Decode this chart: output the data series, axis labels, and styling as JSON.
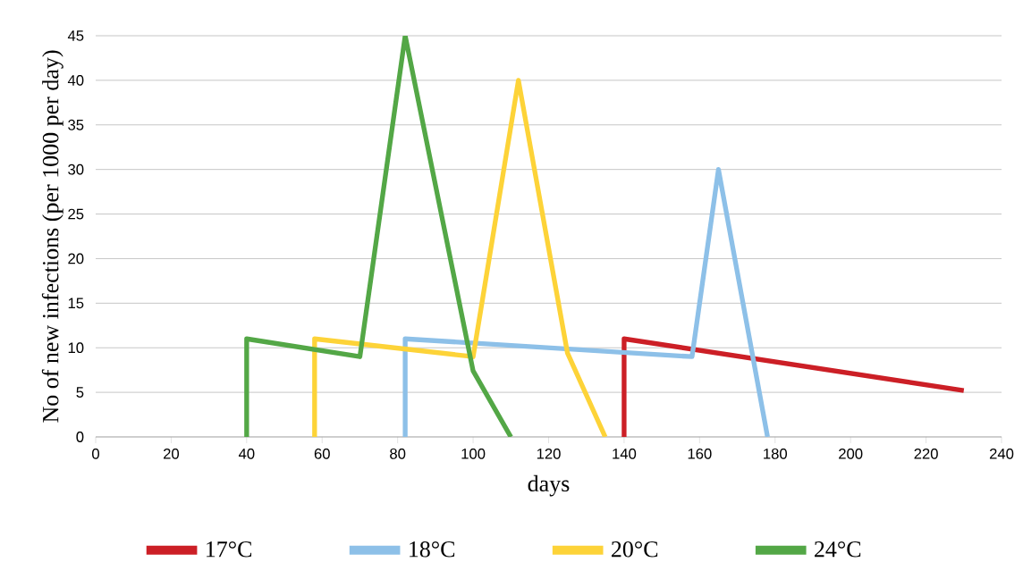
{
  "chart_data": {
    "type": "line",
    "xlabel": "days",
    "ylabel": "No of new infections (per 1000 per day)",
    "xlim": [
      0,
      240
    ],
    "xticks": [
      0,
      20,
      40,
      60,
      80,
      100,
      120,
      140,
      160,
      180,
      200,
      220,
      240
    ],
    "ylim": [
      0,
      45
    ],
    "yticks": [
      0,
      5,
      10,
      15,
      20,
      25,
      30,
      35,
      40,
      45
    ],
    "grid": "y",
    "legend": "bottom",
    "series": [
      {
        "name": "17°C",
        "color": "#cc1f26",
        "x": [
          140,
          140,
          230
        ],
        "values": [
          0,
          11,
          5.2
        ]
      },
      {
        "name": "18°C",
        "color": "#8dc0e8",
        "x": [
          82,
          82,
          158,
          165,
          178
        ],
        "values": [
          0,
          11,
          9,
          30,
          0
        ]
      },
      {
        "name": "20°C",
        "color": "#fdd338",
        "x": [
          58,
          58,
          100,
          112,
          125,
          135
        ],
        "values": [
          0,
          11,
          9,
          40,
          9.4,
          0
        ]
      },
      {
        "name": "24°C",
        "color": "#53a746",
        "x": [
          40,
          40,
          70,
          82,
          100,
          110
        ],
        "values": [
          0,
          11,
          9,
          45,
          7.4,
          0
        ]
      }
    ]
  }
}
